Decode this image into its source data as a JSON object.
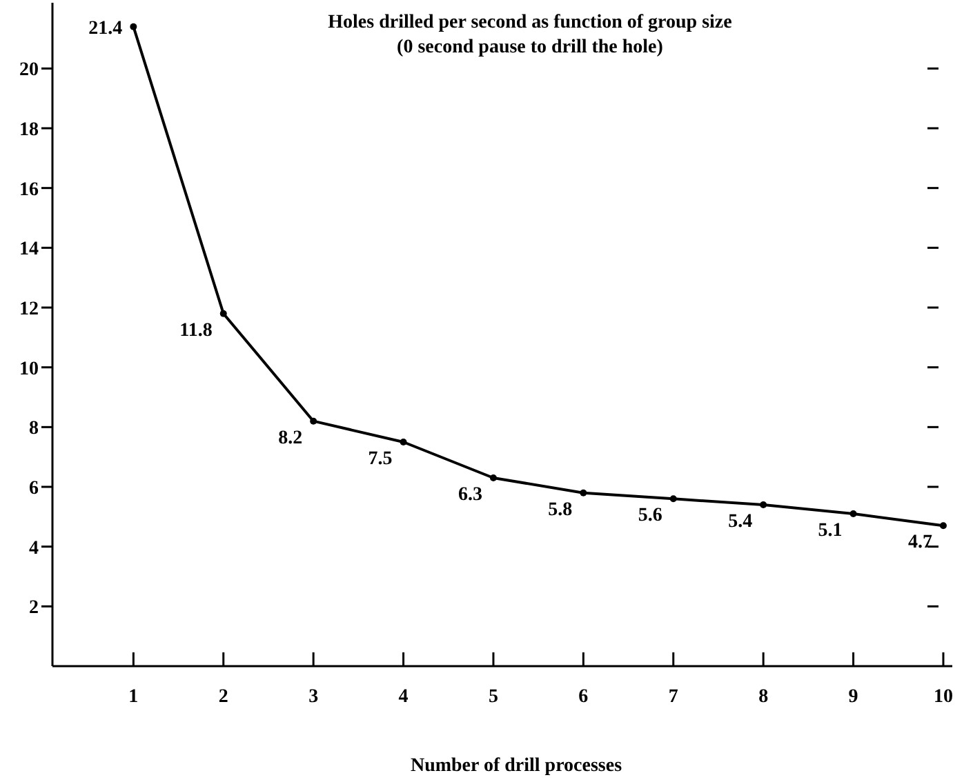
{
  "chart_data": {
    "type": "line",
    "title": "Holes drilled per second as function of group size",
    "subtitle": "(0 second pause to drill the hole)",
    "xlabel": "Number of drill processes",
    "x": [
      1,
      2,
      3,
      4,
      5,
      6,
      7,
      8,
      9,
      10
    ],
    "series": [
      {
        "color": "#000000",
        "values": [
          21.4,
          11.8,
          8.2,
          7.5,
          6.3,
          5.8,
          5.6,
          5.4,
          5.1,
          4.7
        ]
      }
    ],
    "data_labels": true,
    "marker": "circle",
    "line_style": "solid",
    "xlim": [
      0.1,
      10.1
    ],
    "xticks": [
      1,
      2,
      3,
      4,
      5,
      6,
      7,
      8,
      9,
      10
    ],
    "ylim": [
      0,
      22.2
    ],
    "yticks": [
      2,
      4,
      6,
      8,
      10,
      12,
      14,
      16,
      18,
      20
    ],
    "grid": false
  }
}
